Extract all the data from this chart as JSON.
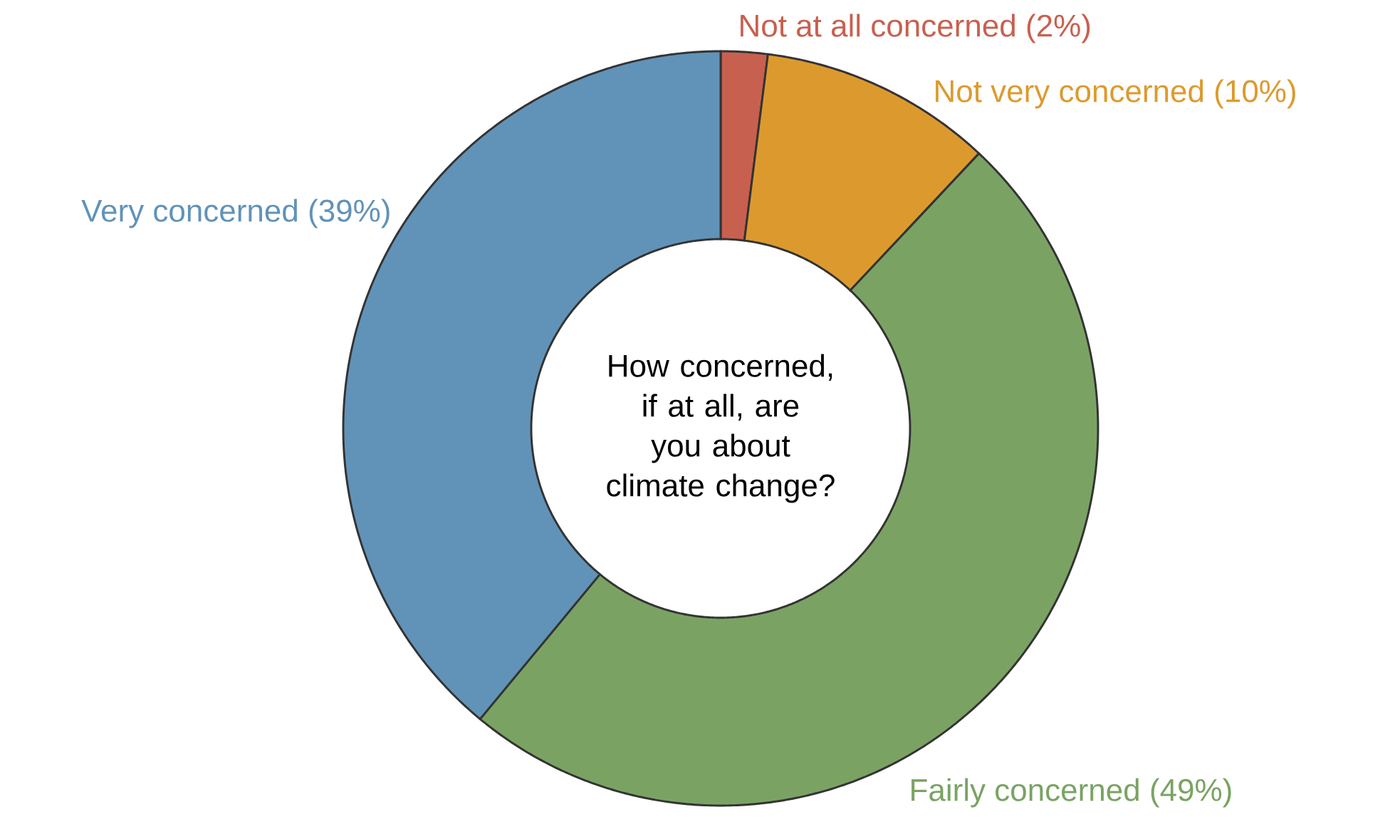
{
  "chart_data": {
    "type": "donut",
    "title": "How concerned, if at all, are you about climate change?",
    "categories": [
      "Not at all concerned",
      "Not very concerned",
      "Fairly concerned",
      "Very concerned"
    ],
    "values": [
      2,
      10,
      49,
      39
    ],
    "value_labels": [
      "(2%)",
      "(10%)",
      "(49%)",
      "(39%)"
    ],
    "colors": [
      "#c8604f",
      "#dc9a2e",
      "#7aa363",
      "#6193b8"
    ]
  }
}
